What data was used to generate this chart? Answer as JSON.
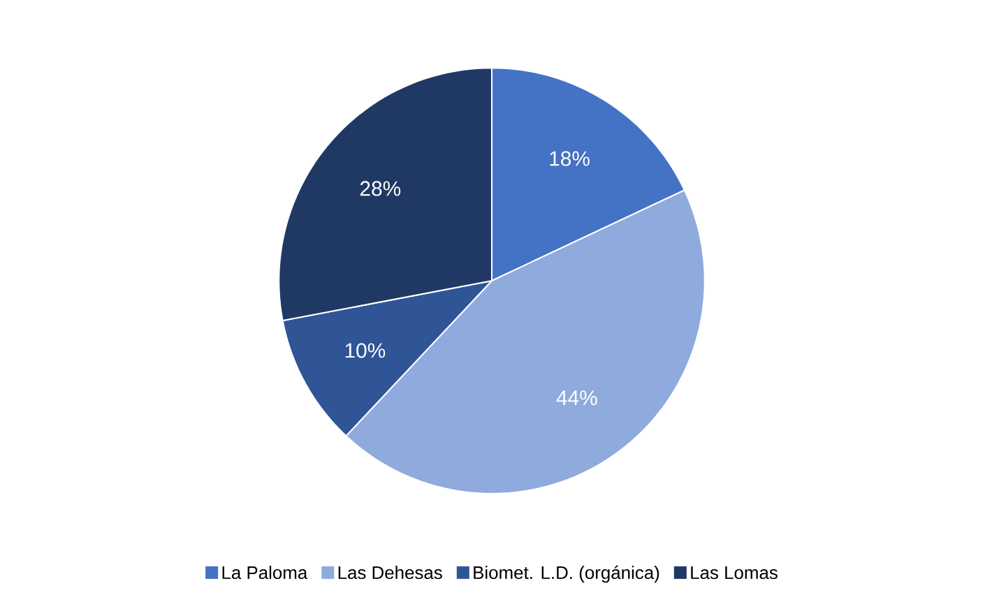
{
  "chart_data": {
    "type": "pie",
    "categories": [
      "La Paloma",
      "Las Dehesas",
      "Biomet. L.D. (orgánica)",
      "Las Lomas"
    ],
    "values": [
      18,
      44,
      10,
      28
    ],
    "colors": [
      "#4472c4",
      "#8faadc",
      "#2f5597",
      "#203864"
    ],
    "value_labels": [
      "18%",
      "44%",
      "10%",
      "28%"
    ],
    "legend": "bottom"
  }
}
